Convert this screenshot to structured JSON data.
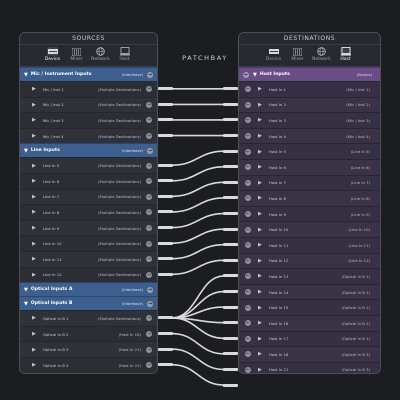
{
  "header": {
    "patchbay_title": "PATCHBAY"
  },
  "tabs": [
    {
      "label": "Device"
    },
    {
      "label": "Mixer"
    },
    {
      "label": "Network"
    },
    {
      "label": "Host"
    }
  ],
  "sources": {
    "title": "SOURCES",
    "active_tab": "Device",
    "groups": [
      {
        "name": "Mic / Instrument Inputs",
        "meta": "(Interleave)",
        "rows": [
          {
            "name": "Mic / Inst 1",
            "meta": "(Multiple Destinations)"
          },
          {
            "name": "Mic / Inst 2",
            "meta": "(Multiple Destinations)"
          },
          {
            "name": "Mic / Inst 3",
            "meta": "(Multiple Destinations)"
          },
          {
            "name": "Mic / Inst 4",
            "meta": "(Multiple Destinations)"
          }
        ]
      },
      {
        "name": "Line Inputs",
        "meta": "(Interleave)",
        "rows": [
          {
            "name": "Line In 5",
            "meta": "(Multiple Destinations)"
          },
          {
            "name": "Line In 6",
            "meta": "(Multiple Destinations)"
          },
          {
            "name": "Line In 7",
            "meta": "(Multiple Destinations)"
          },
          {
            "name": "Line In 8",
            "meta": "(Multiple Destinations)"
          },
          {
            "name": "Line In 9",
            "meta": "(Multiple Destinations)"
          },
          {
            "name": "Line In 10",
            "meta": "(Multiple Destinations)"
          },
          {
            "name": "Line In 11",
            "meta": "(Multiple Destinations)"
          },
          {
            "name": "Line In 12",
            "meta": "(Multiple Destinations)"
          }
        ]
      },
      {
        "name": "Optical Inputs A",
        "meta": "(Interleave)",
        "rows": []
      },
      {
        "name": "Optical Inputs B",
        "meta": "(Interleave)",
        "rows": [
          {
            "name": "Optical In B 1",
            "meta": "(Multiple Destinations)"
          },
          {
            "name": "Optical In B 2",
            "meta": "(Host In 18)"
          },
          {
            "name": "Optical In B 3",
            "meta": "(Host In 21)"
          },
          {
            "name": "Optical In B 4",
            "meta": "(Host In 22)"
          }
        ]
      }
    ]
  },
  "destinations": {
    "title": "DESTINATIONS",
    "active_tab": "Host",
    "groups": [
      {
        "name": "Host Inputs",
        "meta": "(Source)",
        "rows": [
          {
            "name": "Host In 1",
            "meta": "(Mic / Inst 1)"
          },
          {
            "name": "Host In 2",
            "meta": "(Mic / Inst 2)"
          },
          {
            "name": "Host In 3",
            "meta": "(Mic / Inst 3)"
          },
          {
            "name": "Host In 4",
            "meta": "(Mic / Inst 4)"
          },
          {
            "name": "Host In 5",
            "meta": "(Line In 5)"
          },
          {
            "name": "Host In 6",
            "meta": "(Line In 6)"
          },
          {
            "name": "Host In 7",
            "meta": "(Line In 7)"
          },
          {
            "name": "Host In 8",
            "meta": "(Line In 8)"
          },
          {
            "name": "Host In 9",
            "meta": "(Line In 9)"
          },
          {
            "name": "Host In 10",
            "meta": "(Line In 10)"
          },
          {
            "name": "Host In 11",
            "meta": "(Line In 11)"
          },
          {
            "name": "Host In 12",
            "meta": "(Line In 12)"
          },
          {
            "name": "Host In 13",
            "meta": "(Optical In B 1)"
          },
          {
            "name": "Host In 14",
            "meta": "(Optical In B 1)"
          },
          {
            "name": "Host In 15",
            "meta": "(Optical In B 1)"
          },
          {
            "name": "Host In 16",
            "meta": "(Optical In B 1)"
          },
          {
            "name": "Host In 17",
            "meta": "(Optical In B 1)"
          },
          {
            "name": "Host In 18",
            "meta": "(Optical In B 2)"
          },
          {
            "name": "Host In 21",
            "meta": "(Optical In B 3)"
          },
          {
            "name": "Host In 22",
            "meta": "(Optical In B 4)"
          }
        ]
      }
    ]
  },
  "colors": {
    "source_group": "#3d5f8f",
    "destination_group": "#6a4c86",
    "cable": "#d9dadf"
  }
}
